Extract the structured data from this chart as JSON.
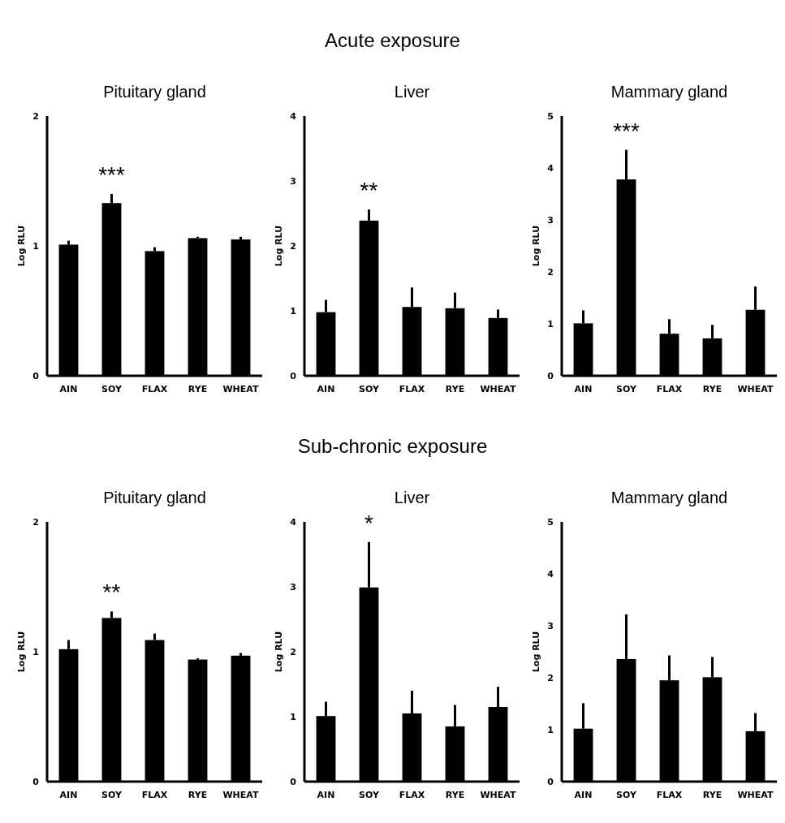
{
  "chart_data": [
    {
      "type": "other",
      "title": "Acute exposure"
    },
    {
      "type": "bar",
      "title": "Pituitary gland",
      "ylabel": "Log RLU",
      "categories": [
        "AIN",
        "SOY",
        "FLAX",
        "RYE",
        "WHEAT"
      ],
      "values": [
        1.01,
        1.33,
        0.96,
        1.06,
        1.05
      ],
      "errors": [
        [
          1.01,
          1.04
        ],
        [
          1.33,
          1.4
        ],
        [
          0.96,
          0.99
        ],
        [
          1.06,
          1.07
        ],
        [
          1.05,
          1.07
        ]
      ],
      "color": "#000000",
      "ylim": [
        0,
        2
      ],
      "yticks": [
        0,
        1,
        2
      ],
      "annotations": [
        "***"
      ]
    },
    {
      "type": "bar",
      "title": "Liver",
      "ylabel": "Log RLU",
      "categories": [
        "AIN",
        "SOY",
        "FLAX",
        "RYE",
        "WHEAT"
      ],
      "values": [
        0.98,
        2.39,
        1.06,
        1.04,
        0.89
      ],
      "errors": [
        [
          0.98,
          1.17
        ],
        [
          2.39,
          2.56
        ],
        [
          1.06,
          1.36
        ],
        [
          1.04,
          1.28
        ],
        [
          0.89,
          1.02
        ]
      ],
      "color": "#000000",
      "ylim": [
        0,
        4
      ],
      "yticks": [
        0,
        1,
        2,
        3,
        4
      ],
      "annotations": [
        "**"
      ]
    },
    {
      "type": "bar",
      "title": "Mammary gland",
      "ylabel": "Log RLU",
      "categories": [
        "AIN",
        "SOY",
        "FLAX",
        "RYE",
        "WHEAT"
      ],
      "values": [
        1.01,
        3.78,
        0.81,
        0.72,
        1.27
      ],
      "errors": [
        [
          1.01,
          1.26
        ],
        [
          3.78,
          4.35
        ],
        [
          0.81,
          1.09
        ],
        [
          0.72,
          0.98
        ],
        [
          1.27,
          1.72
        ]
      ],
      "color": "#000000",
      "ylim": [
        0,
        5
      ],
      "yticks": [
        0,
        1,
        2,
        3,
        4,
        5
      ],
      "annotations": [
        "***"
      ]
    },
    {
      "type": "other",
      "title": "Sub-chronic exposure"
    },
    {
      "type": "bar",
      "title": "Pituitary gland",
      "ylabel": "Log RLU",
      "categories": [
        "AIN",
        "SOY",
        "FLAX",
        "RYE",
        "WHEAT"
      ],
      "values": [
        1.02,
        1.26,
        1.09,
        0.94,
        0.97
      ],
      "errors": [
        [
          1.02,
          1.09
        ],
        [
          1.26,
          1.31
        ],
        [
          1.09,
          1.14
        ],
        [
          0.94,
          0.95
        ],
        [
          0.97,
          0.99
        ]
      ],
      "color": "#000000",
      "ylim": [
        0,
        2
      ],
      "yticks": [
        0,
        1,
        2
      ],
      "annotations": [
        "**"
      ]
    },
    {
      "type": "bar",
      "title": "Liver",
      "ylabel": "Log RLU",
      "categories": [
        "AIN",
        "SOY",
        "FLAX",
        "RYE",
        "WHEAT"
      ],
      "values": [
        1.01,
        2.99,
        1.05,
        0.85,
        1.15
      ],
      "errors": [
        [
          1.01,
          1.23
        ],
        [
          2.99,
          3.69
        ],
        [
          1.05,
          1.4
        ],
        [
          0.85,
          1.18
        ],
        [
          1.15,
          1.46
        ]
      ],
      "color": "#000000",
      "ylim": [
        0,
        4
      ],
      "yticks": [
        0,
        1,
        2,
        3,
        4
      ],
      "annotations": [
        "*"
      ]
    },
    {
      "type": "bar",
      "title": "Mammary gland",
      "ylabel": "Log RLU",
      "categories": [
        "AIN",
        "SOY",
        "FLAX",
        "RYE",
        "WHEAT"
      ],
      "values": [
        1.02,
        2.36,
        1.95,
        2.01,
        0.97
      ],
      "errors": [
        [
          1.02,
          1.51
        ],
        [
          2.36,
          3.22
        ],
        [
          1.95,
          2.43
        ],
        [
          2.01,
          2.4
        ],
        [
          0.97,
          1.32
        ]
      ],
      "color": "#000000",
      "ylim": [
        0,
        5
      ],
      "yticks": [
        0,
        1,
        2,
        3,
        4,
        5
      ]
    }
  ]
}
